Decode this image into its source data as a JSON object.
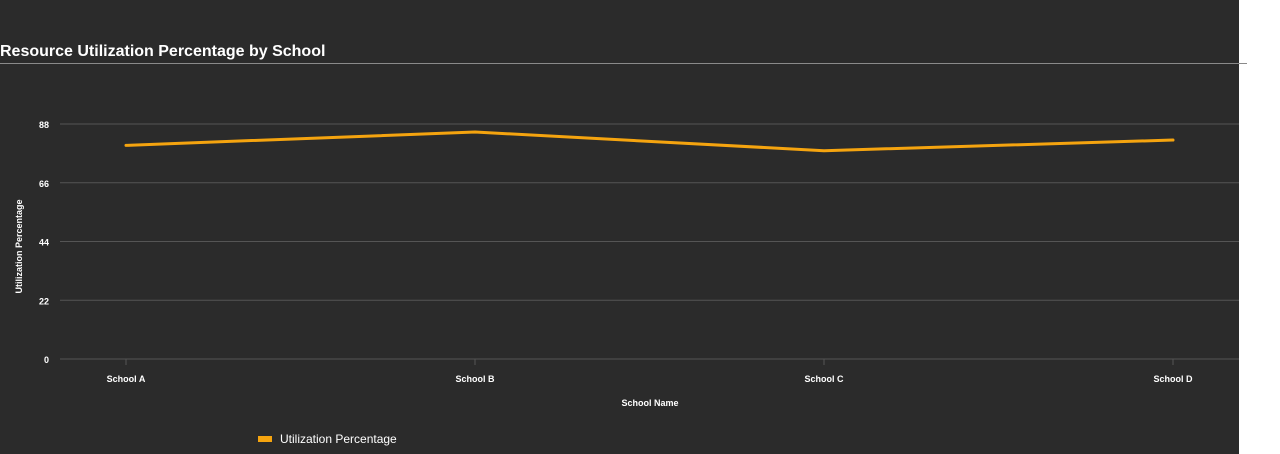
{
  "chart_data": {
    "type": "line",
    "title": "Resource Utilization Percentage by School",
    "xlabel": "School Name",
    "ylabel": "Utilization Percentage",
    "categories": [
      "School A",
      "School B",
      "School C",
      "School D"
    ],
    "yticks": [
      "0",
      "22",
      "44",
      "66",
      "88"
    ],
    "ylim": [
      0,
      88
    ],
    "grid": true,
    "legend_position": "bottom-left",
    "series": [
      {
        "name": "Utilization Percentage",
        "color": "#f5a40f",
        "values": [
          80,
          85,
          78,
          82
        ]
      }
    ]
  },
  "theme": {
    "background": "#2b2b2b",
    "gridline": "#555555",
    "text": "#ffffff"
  }
}
